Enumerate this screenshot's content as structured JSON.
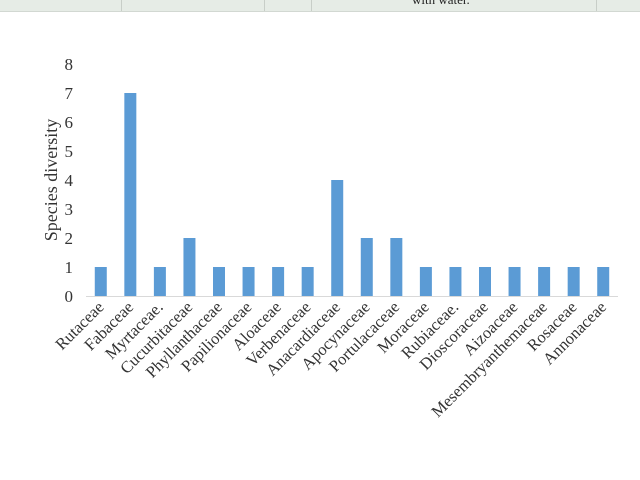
{
  "page_header": {
    "text_fragment": "with water."
  },
  "chart_data": {
    "type": "bar",
    "title": "",
    "xlabel": "",
    "ylabel": "Species diversity",
    "ylim": [
      0,
      8
    ],
    "yticks": [
      0,
      1,
      2,
      3,
      4,
      5,
      6,
      7,
      8
    ],
    "grid": false,
    "bar_color": "#5b9bd5",
    "categories": [
      "Rutaceae",
      "Fabaceae",
      "Myrtaceae.",
      "Cucurbitaceae",
      "Phyllanthaceae",
      "Papilionaceae",
      "Aloaceae",
      "Verbenaceae",
      "Anacardiaceae",
      "Apocynaceae",
      "Portulacaceae",
      "Moraceae",
      "Rubiaceae.",
      "Dioscoraceae",
      "Aizoaceae",
      "Mesembryanthemaceae",
      "Rosaceae",
      "Annonaceae"
    ],
    "values": [
      1,
      7,
      1,
      2,
      1,
      1,
      1,
      1,
      4,
      2,
      2,
      1,
      1,
      1,
      1,
      1,
      1,
      1
    ]
  }
}
